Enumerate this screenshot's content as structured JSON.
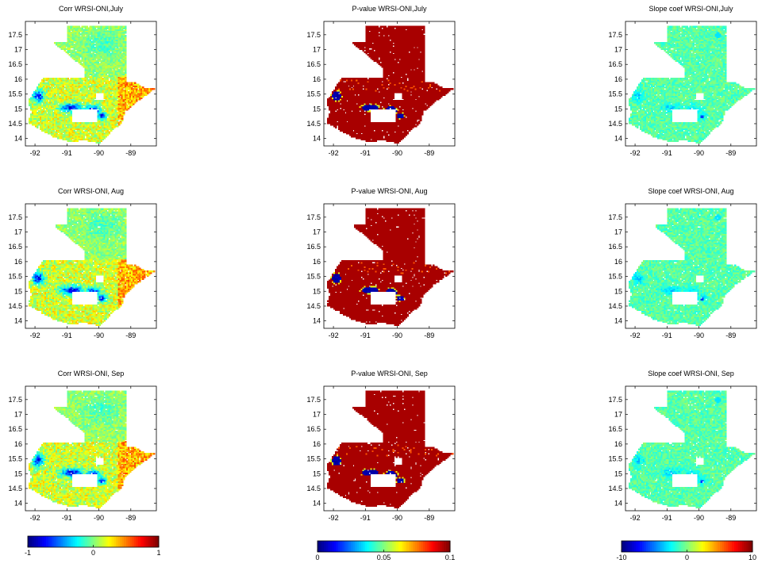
{
  "chart_data": [
    {
      "type": "heatmap",
      "colormap": "jet",
      "colorbar": {
        "min": -1,
        "max": 1,
        "ticks": [
          "-1",
          "0",
          "1"
        ]
      },
      "panels": [
        {
          "title": "Corr WRSI-ONI,July",
          "variable": "corr",
          "month": "July"
        },
        {
          "title": "Corr WRSI-ONI, Aug",
          "variable": "corr",
          "month": "Aug"
        },
        {
          "title": "Corr WRSI-ONI, Sep",
          "variable": "corr",
          "month": "Sep"
        }
      ]
    },
    {
      "type": "heatmap",
      "colormap": "jet",
      "colorbar": {
        "min": 0,
        "max": 0.1,
        "ticks": [
          "0",
          "0.05",
          "0.1"
        ]
      },
      "panels": [
        {
          "title": "P-value WRSI-ONI,July",
          "variable": "pvalue",
          "month": "July"
        },
        {
          "title": "P-value WRSI-ONI, Aug",
          "variable": "pvalue",
          "month": "Aug"
        },
        {
          "title": "P-value WRSI-ONI, Sep",
          "variable": "pvalue",
          "month": "Sep"
        }
      ]
    },
    {
      "type": "heatmap",
      "colormap": "jet",
      "colorbar": {
        "min": -10,
        "max": 10,
        "ticks": [
          "-10",
          "0",
          "10"
        ]
      },
      "panels": [
        {
          "title": "Slope coef WRSI-ONI,July",
          "variable": "slope",
          "month": "July"
        },
        {
          "title": "Slope coef WRSI-ONI, Aug",
          "variable": "slope",
          "month": "Aug"
        },
        {
          "title": "Slope coef WRSI-ONI, Sep",
          "variable": "slope",
          "month": "Sep"
        }
      ]
    }
  ],
  "axes": {
    "xlim": [
      -92.3,
      -88.2
    ],
    "ylim": [
      13.75,
      17.95
    ],
    "xticks": [
      -92,
      -91,
      -90,
      -89
    ],
    "yticks": [
      14,
      14.5,
      15,
      15.5,
      16,
      16.5,
      17,
      17.5
    ],
    "xtick_labels": [
      "-92",
      "-91",
      "-90",
      "-89"
    ],
    "ytick_labels": [
      "14",
      "14.5",
      "15",
      "15.5",
      "16",
      "16.5",
      "17",
      "17.5"
    ]
  }
}
